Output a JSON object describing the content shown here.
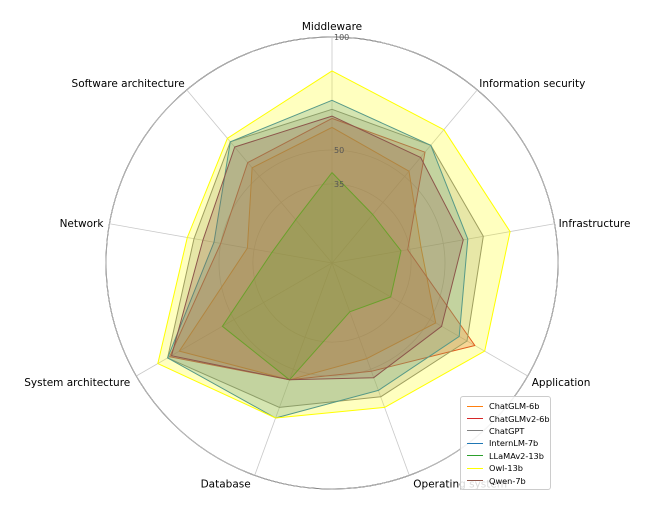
{
  "chart_data": {
    "type": "radar",
    "title": "",
    "axes": [
      "Middleware",
      "Information security",
      "Infrastructure",
      "Application",
      "Operating system",
      "Database",
      "System architecture",
      "Network",
      "Software architecture"
    ],
    "r_ticks": [
      {
        "label": "35",
        "value": 35
      },
      {
        "label": "50",
        "value": 50
      },
      {
        "label": "100",
        "value": 100
      }
    ],
    "rlim": [
      0,
      100
    ],
    "grid": true,
    "legend_position": "lower-right",
    "series": [
      {
        "name": "ChatGLM-6b",
        "color": "#ff7f0e",
        "values": [
          60,
          53,
          40,
          53,
          45,
          55,
          78,
          38,
          55
        ]
      },
      {
        "name": "ChatGLMv2-6b",
        "color": "#d62728",
        "values": [
          64,
          64,
          34,
          73,
          51,
          55,
          83,
          50,
          58
        ]
      },
      {
        "name": "ChatGPT",
        "color": "#7f7f7f",
        "values": [
          68,
          68,
          68,
          69,
          63,
          68,
          84,
          62,
          70
        ]
      },
      {
        "name": "InternLM-7b",
        "color": "#1f77b4",
        "values": [
          72,
          68,
          61,
          65,
          60,
          73,
          84,
          53,
          70
        ]
      },
      {
        "name": "LLaMAv2-13b",
        "color": "#2ca02c",
        "values": [
          40,
          28,
          31,
          30,
          23,
          55,
          56,
          27,
          25
        ]
      },
      {
        "name": "Owl-13b",
        "color": "#ffff00",
        "values": [
          85,
          77,
          80,
          78,
          68,
          73,
          89,
          65,
          72
        ]
      },
      {
        "name": "Qwen-7b",
        "color": "#8c564b",
        "values": [
          65,
          61,
          59,
          56,
          54,
          55,
          82,
          58,
          67
        ]
      }
    ]
  }
}
